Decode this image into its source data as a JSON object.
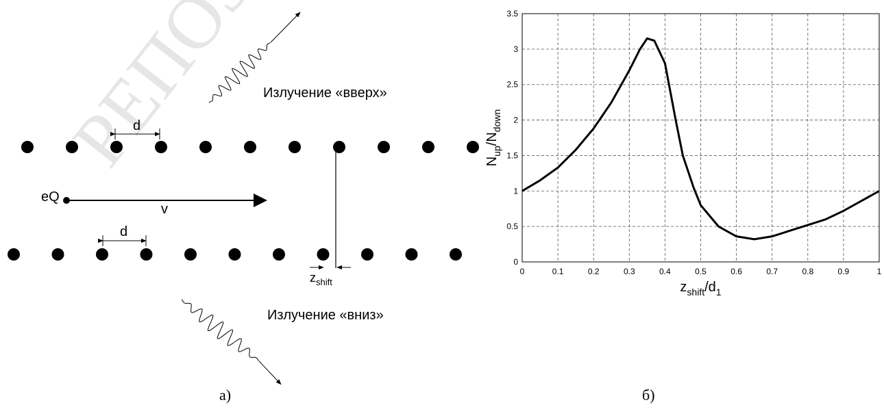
{
  "diagram": {
    "watermark": "РЕПОЗИТОРИЙ",
    "up_label": "Излучение «вверх»",
    "down_label": "Излучение «вниз»",
    "d_top": "d",
    "d_bottom": "d",
    "charge": "eQ",
    "velocity": "v",
    "shift": [
      "z",
      "shift"
    ],
    "caption_a": "а)",
    "caption_b": "б)"
  },
  "chart_data": {
    "type": "line",
    "x": [
      0,
      0.05,
      0.1,
      0.15,
      0.2,
      0.25,
      0.3,
      0.33,
      0.35,
      0.37,
      0.4,
      0.43,
      0.45,
      0.48,
      0.5,
      0.55,
      0.6,
      0.65,
      0.7,
      0.75,
      0.8,
      0.85,
      0.9,
      0.95,
      1
    ],
    "series": [
      {
        "color": "#000000",
        "values": [
          1,
          1.15,
          1.33,
          1.58,
          1.88,
          2.25,
          2.7,
          3.0,
          3.15,
          3.12,
          2.8,
          2.0,
          1.5,
          1.05,
          0.8,
          0.5,
          0.36,
          0.32,
          0.36,
          0.44,
          0.52,
          0.6,
          0.72,
          0.86,
          1
        ]
      }
    ],
    "xlabel": [
      "z",
      "shift",
      "/d",
      "1"
    ],
    "ylabel": [
      "N",
      "up",
      "/N",
      "down"
    ],
    "xlim": [
      0,
      1
    ],
    "ylim": [
      0,
      3.5
    ],
    "xticks": [
      0,
      0.1,
      0.2,
      0.3,
      0.4,
      0.5,
      0.6,
      0.7,
      0.8,
      0.9,
      1
    ],
    "yticks": [
      0,
      0.5,
      1,
      1.5,
      2,
      2.5,
      3,
      3.5
    ],
    "grid": true
  }
}
